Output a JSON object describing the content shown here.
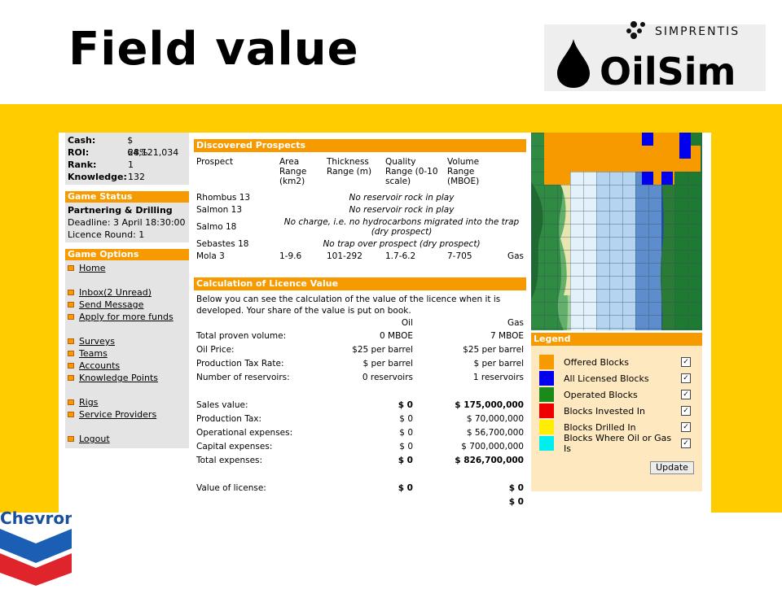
{
  "slide": {
    "title": "Field value"
  },
  "logos": {
    "top_small": "SIMPRENTIS",
    "top_big": "OilSim",
    "bottom": "Chevron"
  },
  "colors": {
    "orange": "#f79a00",
    "yellow": "#ffcc00"
  },
  "sidebar": {
    "stats": [
      {
        "label": "Cash:",
        "value": "$ 64,121,034"
      },
      {
        "label": "ROI:",
        "value": "28%"
      },
      {
        "label": "Rank:",
        "value": "1"
      },
      {
        "label": "Knowledge:",
        "value": "132"
      }
    ],
    "status_head": "Game Status",
    "status_phase": "Partnering & Drilling",
    "status_deadline": "Deadline: 3 April 18:30:00",
    "status_round": "Licence Round: 1",
    "options_head": "Game Options",
    "menu": {
      "home": "Home",
      "inbox": "Inbox(2 Unread)",
      "send": "Send Message",
      "funds": "Apply for more funds",
      "surveys": "Surveys",
      "teams": "Teams",
      "accounts": "Accounts",
      "knowledge": "Knowledge Points",
      "rigs": "Rigs",
      "providers": "Service Providers",
      "logout": "Logout"
    }
  },
  "prospects": {
    "head": "Discovered Prospects",
    "columns": {
      "prospect": "Prospect",
      "area": "Area Range (km2)",
      "thickness": "Thickness Range (m)",
      "quality": "Quality Range (0-10 scale)",
      "volume": "Volume Range (MBOE)"
    },
    "rows": [
      {
        "name": "Rhombus 13",
        "note": "No reservoir rock in play"
      },
      {
        "name": "Salmon 13",
        "note": "No reservoir rock in play"
      },
      {
        "name": "Salmo 18",
        "note": "No charge, i.e. no hydrocarbons migrated into the trap (dry prospect)"
      },
      {
        "name": "Sebastes 18",
        "note": "No trap over prospect (dry prospect)"
      }
    ],
    "mola": {
      "name": "Mola 3",
      "area": "1-9.6",
      "thickness": "101-292",
      "quality": "1.7-6.2",
      "volume": "7-705",
      "type": "Gas"
    }
  },
  "calc": {
    "head": "Calculation of Licence Value",
    "intro": "Below you can see the calculation of the value of the licence when it is developed. Your share of the value is put on book.",
    "col_oil": "Oil",
    "col_gas": "Gas",
    "rows1": [
      {
        "label": "Total proven volume:",
        "oil": "0 MBOE",
        "gas": "7 MBOE"
      },
      {
        "label": "Oil Price:",
        "oil": "$25 per barrel",
        "gas": "$25 per barrel"
      },
      {
        "label": "Production Tax Rate:",
        "oil": "$ per barrel",
        "gas": "$ per barrel"
      },
      {
        "label": "Number of reservoirs:",
        "oil": "0 reservoirs",
        "gas": "1 reservoirs"
      }
    ],
    "rows2": [
      {
        "label": "Sales value:",
        "oil": "$ 0",
        "gas": "$ 175,000,000"
      },
      {
        "label": "Production Tax:",
        "oil": "$ 0",
        "gas": "$ 70,000,000"
      },
      {
        "label": "Operational expenses:",
        "oil": "$ 0",
        "gas": "$ 56,700,000"
      },
      {
        "label": "Capital expenses:",
        "oil": "$ 0",
        "gas": "$ 700,000,000"
      },
      {
        "label": "Total expenses:",
        "oil": "$ 0",
        "gas": "$ 826,700,000"
      }
    ],
    "value_label": "Value of license:",
    "value_oil": "$ 0",
    "value_gas": "$ 0",
    "value_total": "$ 0"
  },
  "legend": {
    "head": "Legend",
    "items": [
      {
        "label": "Offered Blocks",
        "color": "#f79a00"
      },
      {
        "label": "All Licensed Blocks",
        "color": "#0000ee"
      },
      {
        "label": "Operated Blocks",
        "color": "#1a8a1a"
      },
      {
        "label": "Blocks Invested In",
        "color": "#ee0000"
      },
      {
        "label": "Blocks Drilled In",
        "color": "#ffee00"
      },
      {
        "label": "Blocks Where Oil or Gas Is",
        "color": "#00eeee"
      }
    ],
    "update": "Update"
  }
}
